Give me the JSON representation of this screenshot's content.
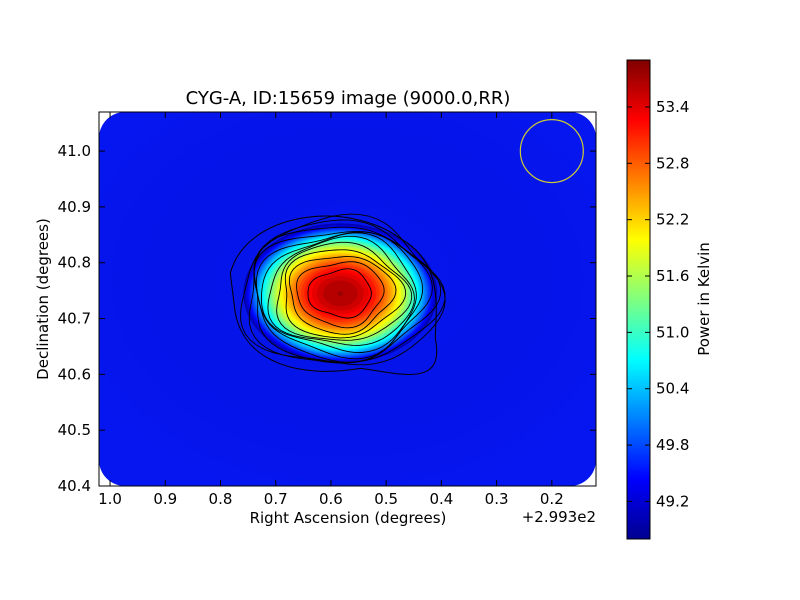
{
  "chart_data": {
    "type": "heatmap",
    "title": "CYG-A, ID:15659 image (9000.0,RR)",
    "xlabel": "Right Ascension (degrees)",
    "ylabel": "Declination (degrees)",
    "x_offset_label": "+2.993e2",
    "xlim": [
      1.02,
      0.12
    ],
    "ylim": [
      40.4,
      41.07
    ],
    "x_ticks": [
      1.0,
      0.9,
      0.8,
      0.7,
      0.6,
      0.5,
      0.4,
      0.3,
      0.2
    ],
    "x_tick_labels": [
      "1.0",
      "0.9",
      "0.8",
      "0.7",
      "0.6",
      "0.5",
      "0.4",
      "0.3",
      "0.2"
    ],
    "y_ticks": [
      40.4,
      40.5,
      40.6,
      40.7,
      40.8,
      40.9,
      41.0
    ],
    "y_tick_labels": [
      "40.4",
      "40.5",
      "40.6",
      "40.7",
      "40.8",
      "40.9",
      "41.0"
    ],
    "colorbar": {
      "label": "Power in Kelvin",
      "range": [
        48.8,
        53.9
      ],
      "ticks": [
        49.2,
        49.8,
        50.4,
        51.0,
        51.6,
        52.2,
        52.8,
        53.4
      ],
      "tick_labels": [
        "49.2",
        "49.8",
        "50.4",
        "51.0",
        "51.6",
        "52.2",
        "52.8",
        "53.4"
      ],
      "colormap": "jet"
    },
    "source_peak": {
      "x": 0.583,
      "y": 40.745,
      "value": 53.75
    },
    "background_value": 49.0,
    "contour_count": 12,
    "beam_circle": {
      "x": 0.2,
      "y": 41.0,
      "radius_deg": 0.057,
      "color": "#cccc33"
    }
  }
}
